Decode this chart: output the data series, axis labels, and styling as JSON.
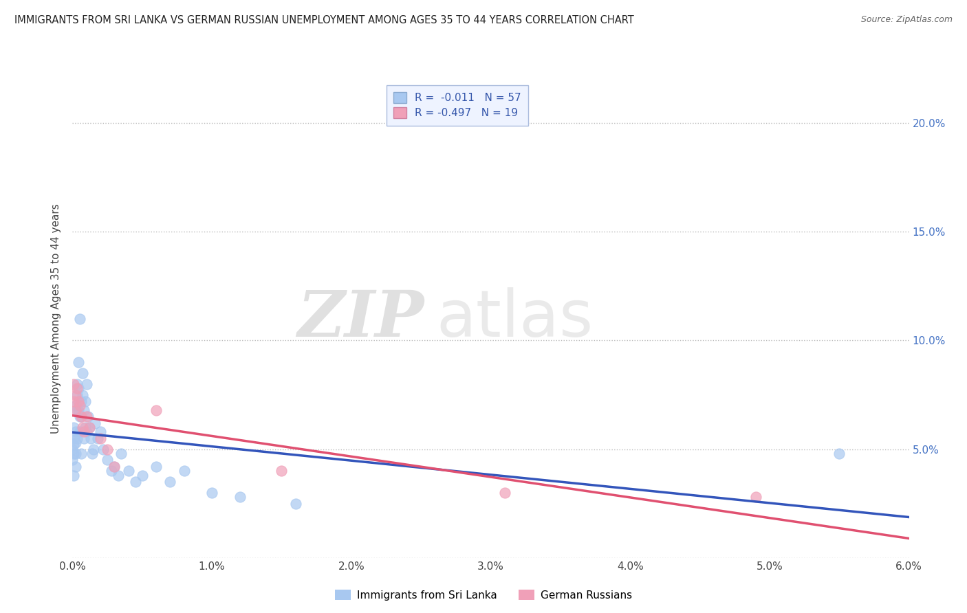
{
  "title": "IMMIGRANTS FROM SRI LANKA VS GERMAN RUSSIAN UNEMPLOYMENT AMONG AGES 35 TO 44 YEARS CORRELATION CHART",
  "source": "Source: ZipAtlas.com",
  "ylabel": "Unemployment Among Ages 35 to 44 years",
  "xlim": [
    0.0,
    0.06
  ],
  "ylim": [
    0.0,
    0.22
  ],
  "yticks": [
    0.0,
    0.05,
    0.1,
    0.15,
    0.2
  ],
  "ytick_labels": [
    "",
    "5.0%",
    "10.0%",
    "15.0%",
    "20.0%"
  ],
  "xticks": [
    0.0,
    0.01,
    0.02,
    0.03,
    0.04,
    0.05,
    0.06
  ],
  "xtick_labels": [
    "0.0%",
    "1.0%",
    "2.0%",
    "3.0%",
    "4.0%",
    "5.0%",
    "6.0%"
  ],
  "sri_lanka_color": "#A8C8F0",
  "german_russian_color": "#F0A0B8",
  "sri_lanka_line_color": "#3355BB",
  "german_russian_line_color": "#E05070",
  "sri_lanka_R": -0.011,
  "sri_lanka_N": 57,
  "german_russian_R": -0.497,
  "german_russian_N": 19,
  "watermark_zip": "ZIP",
  "watermark_atlas": "atlas",
  "sri_lanka_points_x": [
    0.0,
    0.0,
    0.0001,
    0.0001,
    0.0001,
    0.0001,
    0.0001,
    0.0002,
    0.0002,
    0.0002,
    0.0002,
    0.0002,
    0.0003,
    0.0003,
    0.0003,
    0.0003,
    0.0004,
    0.0004,
    0.0004,
    0.0005,
    0.0005,
    0.0005,
    0.0006,
    0.0006,
    0.0006,
    0.0007,
    0.0007,
    0.0008,
    0.0008,
    0.0009,
    0.0009,
    0.001,
    0.001,
    0.0011,
    0.0012,
    0.0013,
    0.0014,
    0.0015,
    0.0016,
    0.0018,
    0.002,
    0.0022,
    0.0025,
    0.0028,
    0.003,
    0.0033,
    0.0035,
    0.004,
    0.0045,
    0.005,
    0.006,
    0.007,
    0.008,
    0.01,
    0.012,
    0.016,
    0.055
  ],
  "sri_lanka_points_y": [
    0.05,
    0.045,
    0.048,
    0.052,
    0.038,
    0.055,
    0.06,
    0.042,
    0.048,
    0.053,
    0.058,
    0.07,
    0.068,
    0.075,
    0.055,
    0.08,
    0.068,
    0.09,
    0.078,
    0.11,
    0.065,
    0.058,
    0.072,
    0.065,
    0.048,
    0.085,
    0.075,
    0.068,
    0.055,
    0.072,
    0.06,
    0.08,
    0.058,
    0.065,
    0.06,
    0.055,
    0.048,
    0.05,
    0.062,
    0.055,
    0.058,
    0.05,
    0.045,
    0.04,
    0.042,
    0.038,
    0.048,
    0.04,
    0.035,
    0.038,
    0.042,
    0.035,
    0.04,
    0.03,
    0.028,
    0.025,
    0.048
  ],
  "german_russian_points_x": [
    0.0001,
    0.0001,
    0.0002,
    0.0002,
    0.0003,
    0.0004,
    0.0005,
    0.0006,
    0.0007,
    0.0008,
    0.001,
    0.0012,
    0.002,
    0.0025,
    0.003,
    0.006,
    0.015,
    0.031,
    0.049
  ],
  "german_russian_points_y": [
    0.08,
    0.072,
    0.075,
    0.068,
    0.078,
    0.072,
    0.07,
    0.065,
    0.06,
    0.058,
    0.065,
    0.06,
    0.055,
    0.05,
    0.042,
    0.068,
    0.04,
    0.03,
    0.028
  ]
}
